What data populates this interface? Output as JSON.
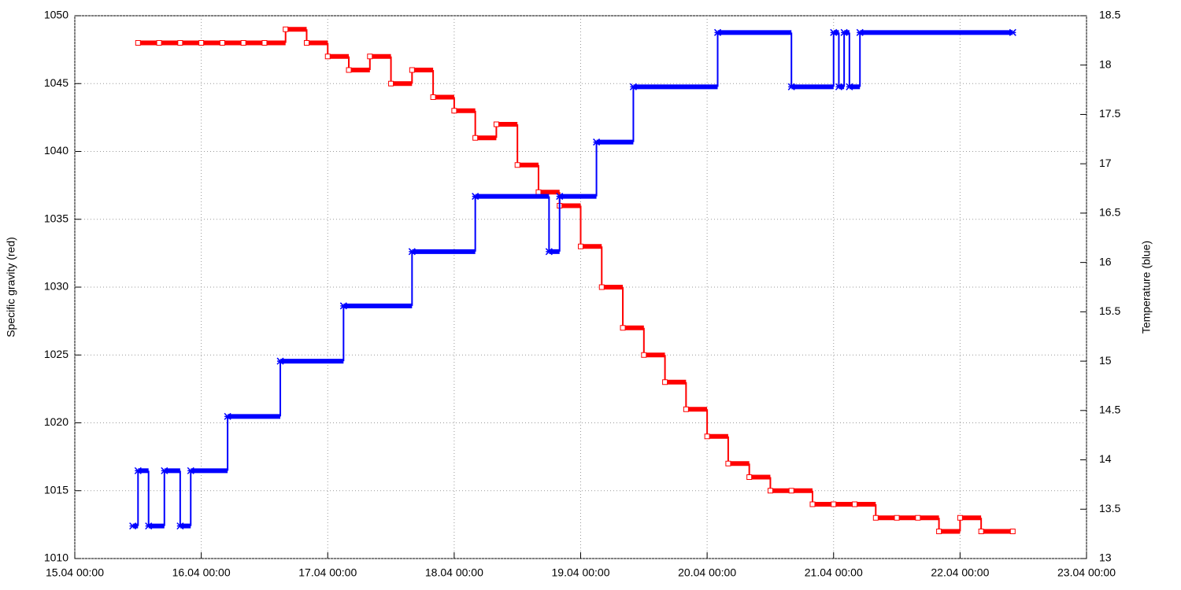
{
  "chart_data": {
    "type": "line",
    "ylabel": "Specific gravity (red)",
    "y2label": "Temperature (blue)",
    "xlim": [
      "15.04 00:00",
      "23.04 00:00"
    ],
    "xticks": [
      "15.04 00:00",
      "16.04 00:00",
      "17.04 00:00",
      "18.04 00:00",
      "19.04 00:00",
      "20.04 00:00",
      "21.04 00:00",
      "22.04 00:00",
      "23.04 00:00"
    ],
    "ylim": [
      1010,
      1050
    ],
    "yticks": [
      1010,
      1015,
      1020,
      1025,
      1030,
      1035,
      1040,
      1045,
      1050
    ],
    "y2lim": [
      13,
      18.5
    ],
    "y2ticks": [
      13,
      13.5,
      14,
      14.5,
      15,
      15.5,
      16,
      16.5,
      17,
      17.5,
      18,
      18.5
    ],
    "grid": true,
    "series": [
      {
        "color": "#ff0000",
        "marker": "square",
        "x": [
          "15.04 12:00",
          "15.04 16:00",
          "15.04 20:00",
          "16.04 00:00",
          "16.04 04:00",
          "16.04 08:00",
          "16.04 12:00",
          "16.04 16:00",
          "16.04 20:00",
          "17.04 00:00",
          "17.04 04:00",
          "17.04 08:00",
          "17.04 12:00",
          "17.04 16:00",
          "17.04 20:00",
          "18.04 00:00",
          "18.04 04:00",
          "18.04 08:00",
          "18.04 12:00",
          "18.04 16:00",
          "18.04 20:00",
          "19.04 00:00",
          "19.04 04:00",
          "19.04 08:00",
          "19.04 12:00",
          "19.04 16:00",
          "19.04 20:00",
          "20.04 00:00",
          "20.04 04:00",
          "20.04 08:00",
          "20.04 12:00",
          "20.04 16:00",
          "20.04 20:00",
          "21.04 00:00",
          "21.04 04:00",
          "21.04 08:00",
          "21.04 12:00",
          "21.04 16:00",
          "21.04 20:00",
          "22.04 00:00",
          "22.04 04:00",
          "22.04 10:00"
        ],
        "values": [
          1048,
          1048,
          1048,
          1048,
          1048,
          1048,
          1048,
          1049,
          1048,
          1047,
          1046,
          1047,
          1045,
          1046,
          1044,
          1043,
          1041,
          1042,
          1039,
          1037,
          1036,
          1033,
          1030,
          1027,
          1025,
          1023,
          1021,
          1019,
          1017,
          1016,
          1015,
          1015,
          1014,
          1014,
          1014,
          1013,
          1013,
          1013,
          1012,
          1013,
          1012,
          1012
        ]
      },
      {
        "color": "#0000ff",
        "marker": "cross",
        "axis": "y2",
        "x": [
          "15.04 11:00",
          "15.04 12:00",
          "15.04 14:00",
          "15.04 17:00",
          "15.04 20:00",
          "15.04 22:00",
          "16.04 05:00",
          "16.04 15:00",
          "17.04 03:00",
          "17.04 16:00",
          "18.04 04:00",
          "18.04 18:00",
          "18.04 20:00",
          "19.04 03:00",
          "19.04 10:00",
          "20.04 02:00",
          "20.04 16:00",
          "21.04 00:00",
          "21.04 01:00",
          "21.04 02:00",
          "21.04 03:00",
          "21.04 05:00",
          "22.04 10:00"
        ],
        "values": [
          13.33,
          13.89,
          13.33,
          13.89,
          13.33,
          13.89,
          14.44,
          15,
          15.56,
          16.11,
          16.67,
          16.11,
          16.67,
          17.22,
          17.78,
          18.33,
          17.78,
          18.33,
          17.78,
          18.33,
          17.78,
          18.33,
          18.33
        ]
      }
    ]
  }
}
